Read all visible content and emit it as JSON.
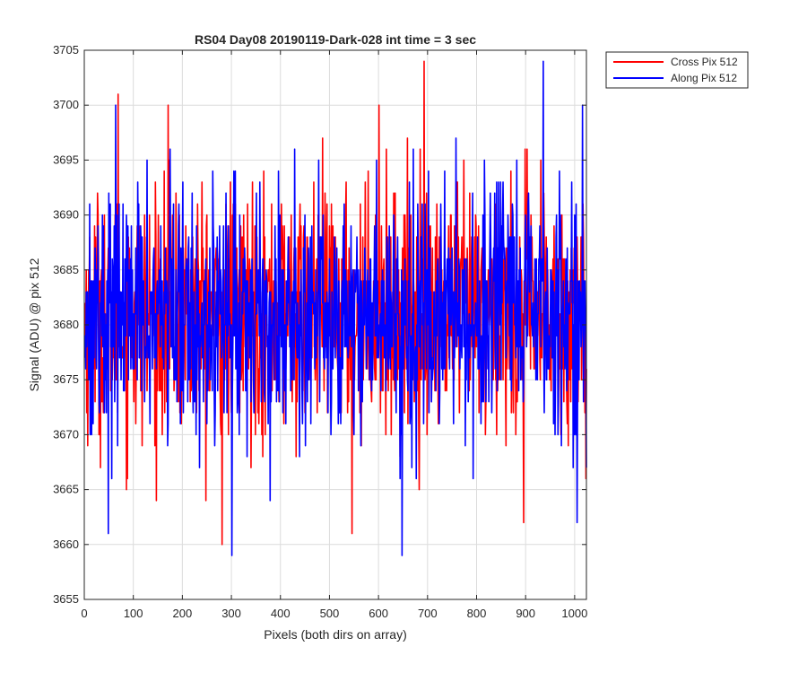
{
  "chart_data": {
    "type": "line",
    "title": "RS04 Day08 20190119-Dark-028 int time = 3 sec",
    "xlabel": "Pixels (both dirs on array)",
    "ylabel": "Signal (ADU) @ pix 512",
    "xlim": [
      0,
      1024
    ],
    "ylim": [
      3655,
      3705
    ],
    "xticks": [
      0,
      100,
      200,
      300,
      400,
      500,
      600,
      700,
      800,
      900,
      1000
    ],
    "yticks": [
      3655,
      3660,
      3665,
      3670,
      3675,
      3680,
      3685,
      3690,
      3695,
      3700,
      3705
    ],
    "grid": true,
    "legend_position": "outside-top-right",
    "n_points": 1024,
    "series": [
      {
        "name": "Cross Pix 512",
        "color": "#ff0000",
        "mean": 3681,
        "std": 5.5,
        "extremes": [
          {
            "x": 68,
            "y": 3701
          },
          {
            "x": 170,
            "y": 3700
          },
          {
            "x": 280,
            "y": 3660
          },
          {
            "x": 545,
            "y": 3661
          },
          {
            "x": 600,
            "y": 3700
          },
          {
            "x": 692,
            "y": 3704
          },
          {
            "x": 895,
            "y": 3662
          },
          {
            "x": 1022,
            "y": 3666
          }
        ]
      },
      {
        "name": "Along Pix 512",
        "color": "#0000ff",
        "mean": 3681,
        "std": 5.5,
        "extremes": [
          {
            "x": 63,
            "y": 3700
          },
          {
            "x": 48,
            "y": 3661
          },
          {
            "x": 300,
            "y": 3659
          },
          {
            "x": 647,
            "y": 3659
          },
          {
            "x": 935,
            "y": 3704
          },
          {
            "x": 1015,
            "y": 3700
          },
          {
            "x": 1004,
            "y": 3662
          }
        ]
      }
    ]
  }
}
